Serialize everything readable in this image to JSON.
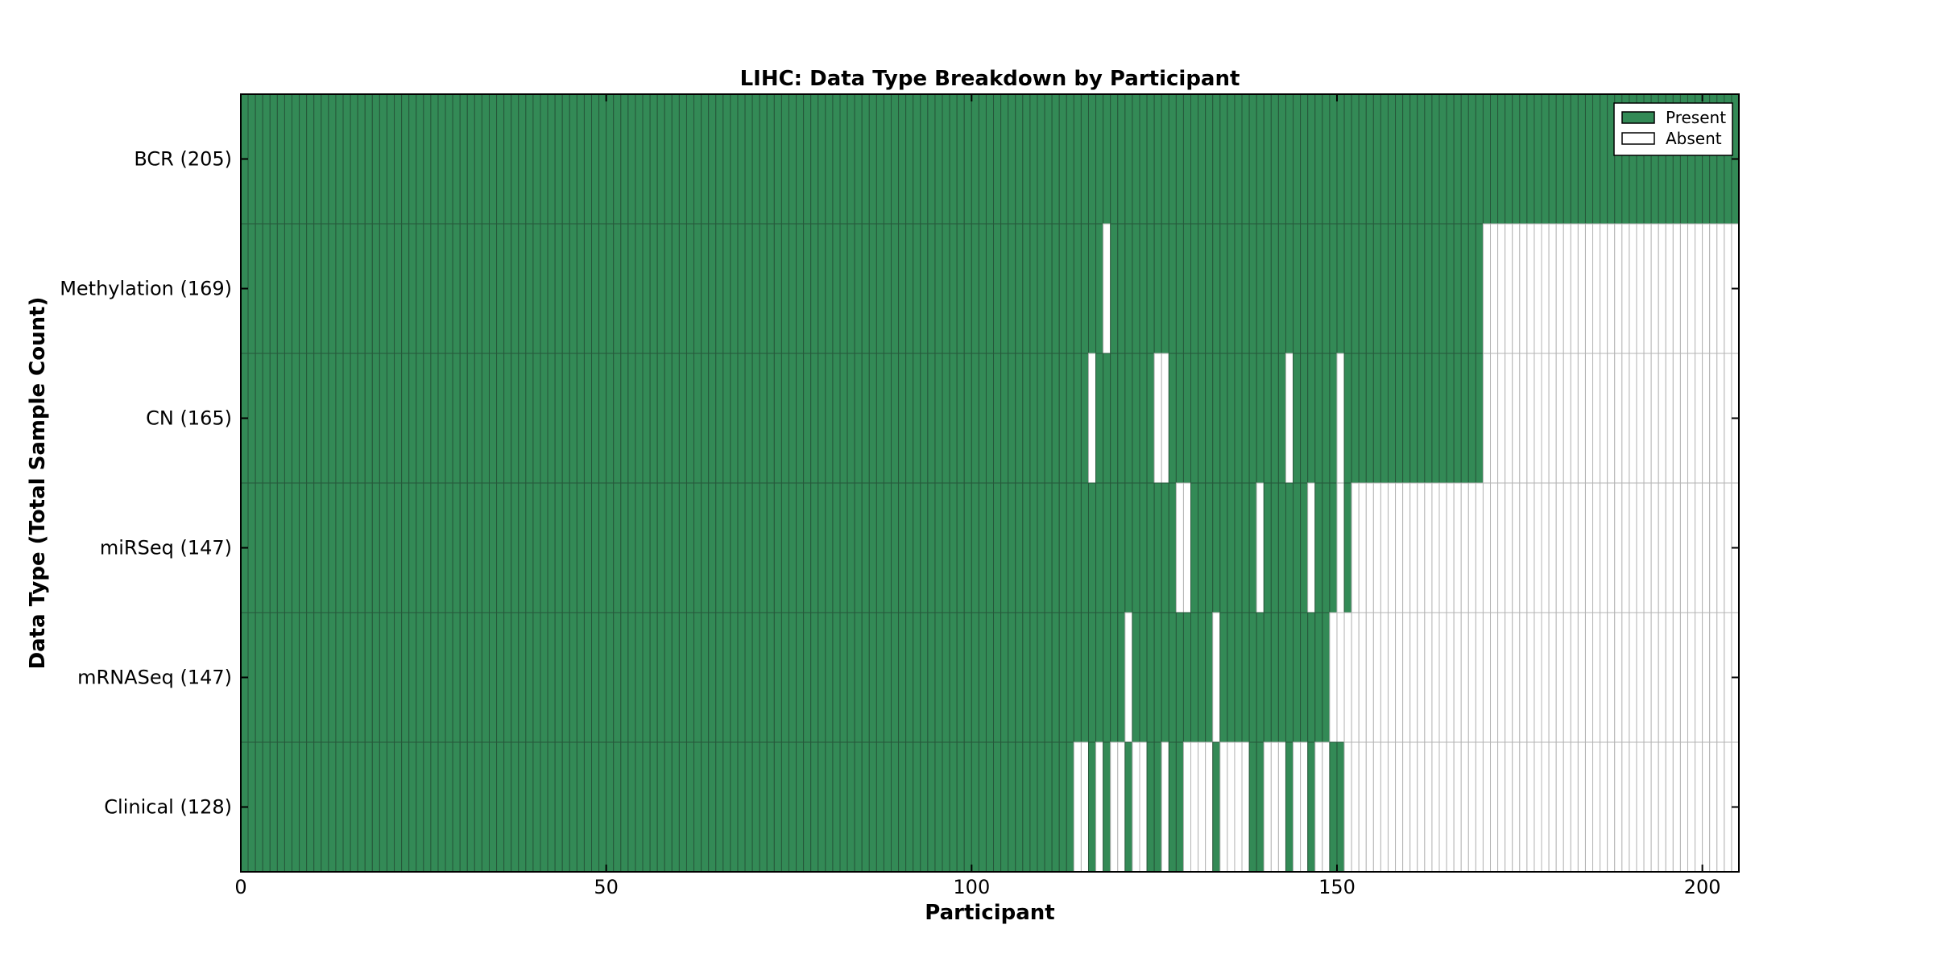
{
  "title": "LIHC: Data Type Breakdown by Participant",
  "axes": {
    "xlabel": "Participant",
    "ylabel": "Data Type (Total Sample Count)"
  },
  "legend": {
    "items": [
      {
        "label": "Present",
        "color": "#338a56"
      },
      {
        "label": "Absent",
        "color": "#ffffff"
      }
    ]
  },
  "colors": {
    "present_fill": "#338a56",
    "present_edge": "#26573a",
    "absent_fill": "#ffffff",
    "absent_edge": "#b4b4b4",
    "axis": "#000000",
    "background": "#ffffff"
  },
  "chart_data": {
    "type": "heatmap",
    "subtype": "presence-absence-matrix",
    "title": "LIHC: Data Type Breakdown by Participant",
    "xlabel": "Participant",
    "ylabel": "Data Type (Total Sample Count)",
    "x_range": [
      0,
      205
    ],
    "x_ticks": [
      0,
      50,
      100,
      150,
      200
    ],
    "n_participants": 205,
    "legend_position": "upper-right",
    "grid": false,
    "states": [
      "Present",
      "Absent"
    ],
    "rows": [
      {
        "label": "BCR (205)",
        "data_type": "BCR",
        "total_sample_count": 205,
        "present_ranges": [
          [
            0,
            205
          ]
        ]
      },
      {
        "label": "Methylation (169)",
        "data_type": "Methylation",
        "total_sample_count": 169,
        "present_ranges": [
          [
            0,
            118
          ],
          [
            119,
            170
          ]
        ]
      },
      {
        "label": "CN (165)",
        "data_type": "CN",
        "total_sample_count": 165,
        "present_ranges": [
          [
            0,
            116
          ],
          [
            117,
            125
          ],
          [
            127,
            143
          ],
          [
            144,
            150
          ],
          [
            151,
            170
          ]
        ]
      },
      {
        "label": "miRSeq (147)",
        "data_type": "miRSeq",
        "total_sample_count": 147,
        "present_ranges": [
          [
            0,
            128
          ],
          [
            130,
            139
          ],
          [
            140,
            146
          ],
          [
            147,
            150
          ],
          [
            151,
            152
          ]
        ]
      },
      {
        "label": "mRNASeq (147)",
        "data_type": "mRNASeq",
        "total_sample_count": 147,
        "present_ranges": [
          [
            0,
            121
          ],
          [
            122,
            133
          ],
          [
            134,
            149
          ]
        ]
      },
      {
        "label": "Clinical (128)",
        "data_type": "Clinical",
        "total_sample_count": 128,
        "present_ranges": [
          [
            0,
            114
          ],
          [
            116,
            117
          ],
          [
            118,
            119
          ],
          [
            121,
            122
          ],
          [
            124,
            126
          ],
          [
            127,
            129
          ],
          [
            133,
            134
          ],
          [
            138,
            140
          ],
          [
            143,
            144
          ],
          [
            146,
            147
          ],
          [
            149,
            151
          ]
        ]
      }
    ]
  }
}
